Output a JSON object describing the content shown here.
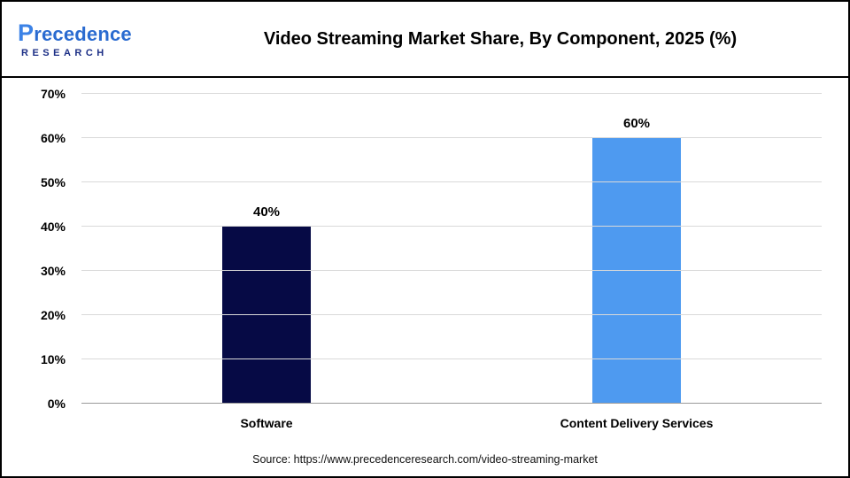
{
  "header": {
    "logo": {
      "line1": "Precedence",
      "line2": "RESEARCH"
    },
    "title": "Video Streaming Market Share, By Component, 2025 (%)"
  },
  "chart_data": {
    "type": "bar",
    "categories": [
      "Software",
      "Content Delivery Services"
    ],
    "values": [
      40,
      60
    ],
    "value_labels": [
      "40%",
      "60%"
    ],
    "bar_colors": [
      "#060a45",
      "#4e9af0"
    ],
    "title": "Video Streaming Market Share, By Component, 2025 (%)",
    "xlabel": "",
    "ylabel": "",
    "ylim": [
      0,
      70
    ],
    "ytick_step": 10,
    "ytick_suffix": "%",
    "grid": "horizontal",
    "legend": "none"
  },
  "footer": {
    "source": "Source: https://www.precedenceresearch.com/video-streaming-market"
  }
}
